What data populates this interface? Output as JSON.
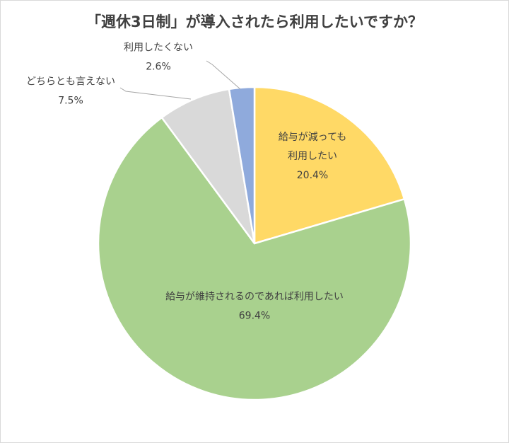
{
  "chart_data": {
    "type": "pie",
    "title": "「週休3日制」が導入されたら利用したいですか？",
    "start_angle_deg": 0,
    "direction": "clockwise",
    "slices": [
      {
        "label_lines": [
          "給与が減っても",
          "利用したい"
        ],
        "value": 20.4,
        "display": "20.4%",
        "color": "#FFD966"
      },
      {
        "label_lines": [
          "給与が維持されるのであれば利用したい"
        ],
        "value": 69.4,
        "display": "69.4%",
        "color": "#A9D18E"
      },
      {
        "label_lines": [
          "どちらとも言えない"
        ],
        "value": 7.5,
        "display": "7.5%",
        "color": "#D9D9D9"
      },
      {
        "label_lines": [
          "利用したくない"
        ],
        "value": 2.6,
        "display": "2.6%",
        "color": "#8FAADC"
      }
    ]
  }
}
